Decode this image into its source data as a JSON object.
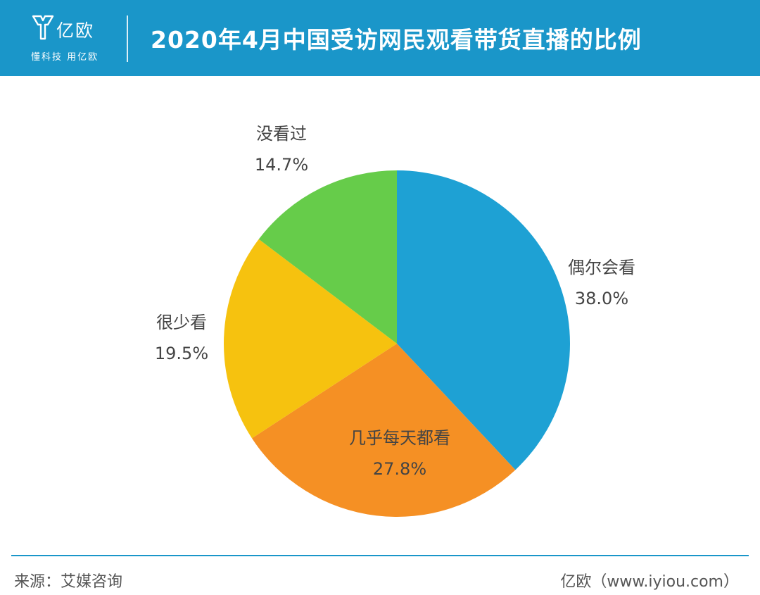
{
  "header": {
    "logo_name": "亿欧",
    "logo_slogan": "懂科技 用亿欧",
    "title": "2020年4月中国受访网民观看带货直播的比例"
  },
  "chart_data": {
    "type": "pie",
    "title": "2020年4月中国受访网民观看带货直播的比例",
    "slices": [
      {
        "label": "偶尔会看",
        "value": 38.0,
        "display": "38.0%",
        "color": "#1ea1d4"
      },
      {
        "label": "几乎每天都看",
        "value": 27.8,
        "display": "27.8%",
        "color": "#f59024"
      },
      {
        "label": "很少看",
        "value": 19.5,
        "display": "19.5%",
        "color": "#f6c20f"
      },
      {
        "label": "没看过",
        "value": 14.7,
        "display": "14.7%",
        "color": "#66cc4a"
      }
    ],
    "start_angle_deg": 0,
    "direction": "clockwise"
  },
  "footer": {
    "source": "来源：艾媒咨询",
    "credit": "亿欧（www.iyiou.com）"
  },
  "colors": {
    "header_bg": "#1a96c9",
    "label_text": "#444444",
    "footer_text": "#555555"
  }
}
